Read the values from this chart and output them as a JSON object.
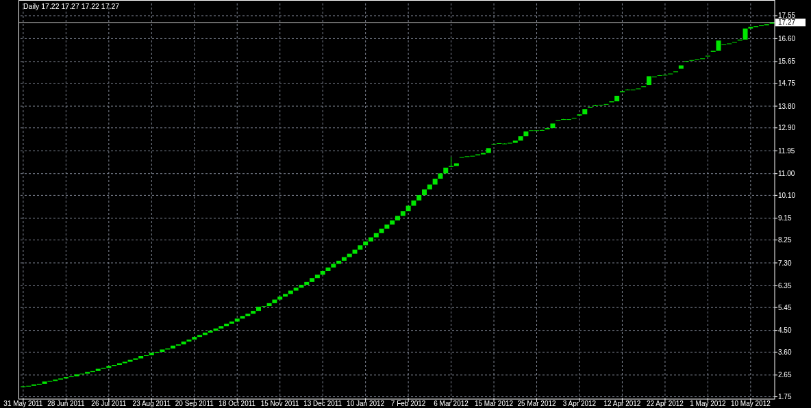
{
  "chart_data": {
    "type": "candlestick",
    "title": "Daily 17.22 17.27 17.22 17.27",
    "categories": [
      "31 May 2011",
      null,
      null,
      null,
      null,
      null,
      null,
      null,
      "28 Jun 2011",
      null,
      null,
      null,
      null,
      null,
      null,
      null,
      "26 Jul 2011",
      null,
      null,
      null,
      null,
      null,
      null,
      null,
      "23 Aug 2011",
      null,
      null,
      null,
      null,
      null,
      null,
      null,
      "20 Sep 2011",
      null,
      null,
      null,
      null,
      null,
      null,
      null,
      "18 Oct 2011",
      null,
      null,
      null,
      null,
      null,
      null,
      null,
      "15 Nov 2011",
      null,
      null,
      null,
      null,
      null,
      null,
      null,
      "13 Dec 2011",
      null,
      null,
      null,
      null,
      null,
      null,
      null,
      "10 Jan 2012",
      null,
      null,
      null,
      null,
      null,
      null,
      null,
      "7 Feb 2012",
      null,
      null,
      null,
      null,
      null,
      null,
      null,
      "6 Mar 2012",
      null,
      null,
      null,
      null,
      null,
      null,
      null,
      "15 Mar 2012",
      null,
      null,
      null,
      null,
      null,
      null,
      null,
      "25 Mar 2012",
      null,
      null,
      null,
      null,
      null,
      null,
      null,
      "3 Apr 2012",
      null,
      null,
      null,
      null,
      null,
      null,
      null,
      "12 Apr 2012",
      null,
      null,
      null,
      null,
      null,
      null,
      null,
      "22 Apr 2012",
      null,
      null,
      null,
      null,
      null,
      null,
      null,
      "1 May 2012",
      null,
      null,
      null,
      null,
      null,
      null,
      null,
      "10 May 2012",
      null,
      null,
      null,
      null
    ],
    "ohlc": [
      [
        2.15,
        2.18,
        2.15,
        2.18
      ],
      [
        2.18,
        2.2,
        2.18,
        2.2
      ],
      [
        2.2,
        2.26,
        2.2,
        2.26
      ],
      [
        2.26,
        2.28,
        2.26,
        2.28
      ],
      [
        2.28,
        2.38,
        2.28,
        2.38
      ],
      [
        2.38,
        2.4,
        2.38,
        2.4
      ],
      [
        2.4,
        2.46,
        2.4,
        2.46
      ],
      [
        2.46,
        2.51,
        2.46,
        2.51
      ],
      [
        2.51,
        2.56,
        2.51,
        2.56
      ],
      [
        2.56,
        2.6,
        2.56,
        2.6
      ],
      [
        2.6,
        2.68,
        2.6,
        2.68
      ],
      [
        2.68,
        2.71,
        2.68,
        2.71
      ],
      [
        2.71,
        2.78,
        2.71,
        2.78
      ],
      [
        2.78,
        2.82,
        2.78,
        2.82
      ],
      [
        2.82,
        2.91,
        2.82,
        2.91
      ],
      [
        2.91,
        2.94,
        2.91,
        2.94
      ],
      [
        2.94,
        3.02,
        2.94,
        3.02
      ],
      [
        3.02,
        3.07,
        3.02,
        3.07
      ],
      [
        3.07,
        3.14,
        3.07,
        3.14
      ],
      [
        3.14,
        3.2,
        3.14,
        3.2
      ],
      [
        3.2,
        3.28,
        3.2,
        3.28
      ],
      [
        3.28,
        3.34,
        3.28,
        3.34
      ],
      [
        3.34,
        3.44,
        3.34,
        3.44
      ],
      [
        3.44,
        3.47,
        3.44,
        3.47
      ],
      [
        3.47,
        3.57,
        3.47,
        3.57
      ],
      [
        3.57,
        3.61,
        3.57,
        3.61
      ],
      [
        3.61,
        3.71,
        3.61,
        3.71
      ],
      [
        3.71,
        3.75,
        3.71,
        3.75
      ],
      [
        3.75,
        3.87,
        3.75,
        3.87
      ],
      [
        3.87,
        3.92,
        3.87,
        3.92
      ],
      [
        3.92,
        4.04,
        3.92,
        4.04
      ],
      [
        4.04,
        4.12,
        4.04,
        4.12
      ],
      [
        4.12,
        4.23,
        4.12,
        4.23
      ],
      [
        4.23,
        4.31,
        4.23,
        4.31
      ],
      [
        4.31,
        4.41,
        4.31,
        4.41
      ],
      [
        4.41,
        4.49,
        4.41,
        4.49
      ],
      [
        4.49,
        4.58,
        4.49,
        4.58
      ],
      [
        4.58,
        4.68,
        4.58,
        4.68
      ],
      [
        4.68,
        4.78,
        4.68,
        4.78
      ],
      [
        4.78,
        4.87,
        4.78,
        4.87
      ],
      [
        4.87,
        4.99,
        4.87,
        4.99
      ],
      [
        4.99,
        5.09,
        4.99,
        5.09
      ],
      [
        5.09,
        5.19,
        5.09,
        5.19
      ],
      [
        5.19,
        5.31,
        5.19,
        5.31
      ],
      [
        5.31,
        5.48,
        5.31,
        5.48
      ],
      [
        5.48,
        5.51,
        5.48,
        5.51
      ],
      [
        5.51,
        5.63,
        5.51,
        5.63
      ],
      [
        5.63,
        5.78,
        5.63,
        5.78
      ],
      [
        5.78,
        5.9,
        5.78,
        5.9
      ],
      [
        5.9,
        6.01,
        5.9,
        6.01
      ],
      [
        6.01,
        6.15,
        6.01,
        6.15
      ],
      [
        6.15,
        6.27,
        6.15,
        6.27
      ],
      [
        6.27,
        6.39,
        6.27,
        6.39
      ],
      [
        6.39,
        6.51,
        6.39,
        6.51
      ],
      [
        6.51,
        6.67,
        6.51,
        6.67
      ],
      [
        6.67,
        6.81,
        6.67,
        6.81
      ],
      [
        6.81,
        6.96,
        6.81,
        6.96
      ],
      [
        6.96,
        7.11,
        6.96,
        7.11
      ],
      [
        7.11,
        7.26,
        7.11,
        7.26
      ],
      [
        7.26,
        7.39,
        7.26,
        7.39
      ],
      [
        7.39,
        7.54,
        7.39,
        7.54
      ],
      [
        7.54,
        7.68,
        7.54,
        7.68
      ],
      [
        7.68,
        7.85,
        7.68,
        7.85
      ],
      [
        7.85,
        8.03,
        7.85,
        8.03
      ],
      [
        8.03,
        8.19,
        8.03,
        8.19
      ],
      [
        8.19,
        8.36,
        8.19,
        8.36
      ],
      [
        8.36,
        8.54,
        8.36,
        8.54
      ],
      [
        8.54,
        8.72,
        8.54,
        8.72
      ],
      [
        8.72,
        8.89,
        8.72,
        8.89
      ],
      [
        8.89,
        9.06,
        8.89,
        9.06
      ],
      [
        9.06,
        9.25,
        9.06,
        9.25
      ],
      [
        9.25,
        9.45,
        9.25,
        9.45
      ],
      [
        9.45,
        9.67,
        9.45,
        9.67
      ],
      [
        9.67,
        9.89,
        9.67,
        9.89
      ],
      [
        9.89,
        10.11,
        9.89,
        10.11
      ],
      [
        10.11,
        10.35,
        10.11,
        10.35
      ],
      [
        10.35,
        10.55,
        10.35,
        10.55
      ],
      [
        10.55,
        10.79,
        10.55,
        10.79
      ],
      [
        10.79,
        11.01,
        10.79,
        11.01
      ],
      [
        11.01,
        11.25,
        11.01,
        11.25
      ],
      [
        11.28,
        11.69,
        11.28,
        11.32
      ],
      [
        11.32,
        11.43,
        11.32,
        11.43
      ],
      [
        11.67,
        11.69,
        11.67,
        11.69
      ],
      [
        11.71,
        11.72,
        11.71,
        11.72
      ],
      [
        11.73,
        11.74,
        11.73,
        11.74
      ],
      [
        11.76,
        11.8,
        11.76,
        11.8
      ],
      [
        11.8,
        11.86,
        11.8,
        11.86
      ],
      [
        11.86,
        12.06,
        11.86,
        12.06
      ],
      [
        12.2,
        12.23,
        12.2,
        12.23
      ],
      [
        12.26,
        12.27,
        12.26,
        12.27
      ],
      [
        12.25,
        12.26,
        12.24,
        12.25
      ],
      [
        12.27,
        12.28,
        12.27,
        12.28
      ],
      [
        12.28,
        12.37,
        12.28,
        12.37
      ],
      [
        12.37,
        12.55,
        12.37,
        12.55
      ],
      [
        12.55,
        12.75,
        12.55,
        12.75
      ],
      [
        12.79,
        12.8,
        12.79,
        12.8
      ],
      [
        12.8,
        12.8,
        12.8,
        12.8
      ],
      [
        12.8,
        12.83,
        12.8,
        12.81
      ],
      [
        12.84,
        12.89,
        12.84,
        12.89
      ],
      [
        12.89,
        13.08,
        12.89,
        13.08
      ],
      [
        13.2,
        13.22,
        13.2,
        13.22
      ],
      [
        13.26,
        13.27,
        13.26,
        13.26
      ],
      [
        13.26,
        13.26,
        13.26,
        13.26
      ],
      [
        13.29,
        13.31,
        13.29,
        13.31
      ],
      [
        13.41,
        13.46,
        13.41,
        13.46
      ],
      [
        13.46,
        13.68,
        13.46,
        13.68
      ],
      [
        13.73,
        13.77,
        13.73,
        13.77
      ],
      [
        13.83,
        13.85,
        13.82,
        13.83
      ],
      [
        13.85,
        13.85,
        13.85,
        13.85
      ],
      [
        13.87,
        13.89,
        13.87,
        13.89
      ],
      [
        13.96,
        14.0,
        13.96,
        14.0
      ],
      [
        14.0,
        14.23,
        14.0,
        14.23
      ],
      [
        14.38,
        14.42,
        14.38,
        14.42
      ],
      [
        14.49,
        14.5,
        14.48,
        14.49
      ],
      [
        14.49,
        14.49,
        14.49,
        14.49
      ],
      [
        14.51,
        14.53,
        14.51,
        14.53
      ],
      [
        14.59,
        14.62,
        14.59,
        14.62
      ],
      [
        14.68,
        15.04,
        14.68,
        15.04
      ],
      [
        15.0,
        15.03,
        15.0,
        15.03
      ],
      [
        15.08,
        15.09,
        15.08,
        15.08
      ],
      [
        15.1,
        15.1,
        15.1,
        15.1
      ],
      [
        15.13,
        15.15,
        15.13,
        15.15
      ],
      [
        15.21,
        15.24,
        15.21,
        15.24
      ],
      [
        15.35,
        15.49,
        15.35,
        15.49
      ],
      [
        15.65,
        15.67,
        15.65,
        15.67
      ],
      [
        15.7,
        15.71,
        15.7,
        15.71
      ],
      [
        15.74,
        15.75,
        15.74,
        15.75
      ],
      [
        15.76,
        15.78,
        15.76,
        15.78
      ],
      [
        15.86,
        15.89,
        15.86,
        15.89
      ],
      [
        16.05,
        16.1,
        16.05,
        16.1
      ],
      [
        16.1,
        16.52,
        16.1,
        16.52
      ],
      [
        16.34,
        16.36,
        16.34,
        16.36
      ],
      [
        16.38,
        16.4,
        16.38,
        16.4
      ],
      [
        16.45,
        16.46,
        16.45,
        16.46
      ],
      [
        16.52,
        16.56,
        16.52,
        16.56
      ],
      [
        16.56,
        17.02,
        16.56,
        17.02
      ],
      [
        17.02,
        17.09,
        17.02,
        17.09
      ],
      [
        17.08,
        17.12,
        17.08,
        17.12
      ],
      [
        17.13,
        17.15,
        17.13,
        17.15
      ],
      [
        17.15,
        17.2,
        17.15,
        17.2
      ],
      [
        17.22,
        17.27,
        17.22,
        17.27
      ]
    ],
    "ylim": [
      1.68,
      18.06
    ],
    "yticks": [
      1.75,
      2.65,
      {
        "value": 3.6,
        "label": "3.60"
      },
      {
        "value": 4.5,
        "label": "4.50"
      },
      5.45,
      6.35,
      {
        "value": 7.3,
        "label": "7.30"
      },
      8.25,
      9.15,
      {
        "value": 10.1,
        "label": "10.10"
      },
      {
        "value": 11,
        "label": "11.00"
      },
      11.95,
      {
        "value": 12.9,
        "label": "12.90"
      },
      {
        "value": 13.8,
        "label": "13.80"
      },
      14.75,
      15.65,
      {
        "value": 16.6,
        "label": "16.60"
      },
      17.55
    ],
    "ref_lines": [
      {
        "axis": "y",
        "value": 17.27,
        "label": "17.27",
        "color": "#c0c0c0"
      }
    ],
    "color": "#00ff00",
    "grid": true
  }
}
